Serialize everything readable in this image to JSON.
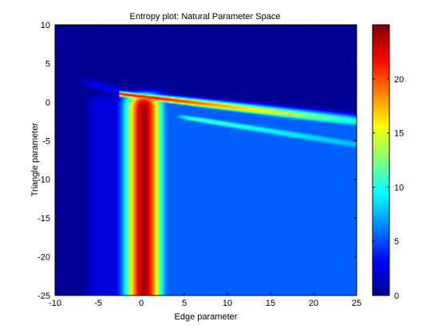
{
  "chart_data": {
    "type": "heatmap",
    "title": "Entropy plot: Natural Parameter Space",
    "xlabel": "Edge parameter",
    "ylabel": "Triangle parameter",
    "xlim": [
      -10,
      25
    ],
    "ylim": [
      -25,
      10
    ],
    "x_ticks": [
      "-10",
      "-5",
      "0",
      "5",
      "10",
      "15",
      "20",
      "25"
    ],
    "y_ticks": [
      "10",
      "5",
      "0",
      "-5",
      "-10",
      "-15",
      "-20",
      "-25"
    ],
    "colorbar": {
      "colormap": "jet",
      "range": [
        0,
        25
      ],
      "ticks": [
        "0",
        "5",
        "10",
        "15",
        "20"
      ]
    },
    "features": {
      "vertical_band_center_x": 0.3,
      "vertical_band_peak": 24,
      "band_start_y": 0.9,
      "upper_ridge": {
        "from": [
          -2,
          1
        ],
        "to": [
          25,
          -2.5
        ]
      },
      "lower_ridge": {
        "from": [
          4,
          -1.8
        ],
        "to": [
          25,
          -5.5
        ]
      },
      "lower_right_plateau": 5.5,
      "background": 0.5
    }
  }
}
